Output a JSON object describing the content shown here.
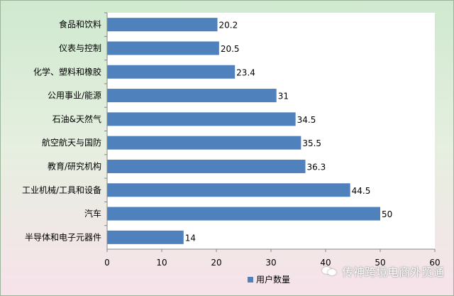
{
  "chart_data": {
    "type": "bar",
    "orientation": "horizontal",
    "categories": [
      "食品和饮料",
      "仪表与控制",
      "化学、塑料和橡胶",
      "公用事业/能源",
      "石油&天然气",
      "航空航天与国防",
      "教育/研究机构",
      "工业机械/工具和设备",
      "汽车",
      "半导体和电子元器件"
    ],
    "series": [
      {
        "name": "用户数量",
        "values": [
          20.2,
          20.5,
          23.4,
          31,
          34.5,
          35.5,
          36.3,
          44.5,
          50,
          14
        ],
        "labels": [
          "20.2",
          "20.5",
          "23.4",
          "31",
          "34.5",
          "35.5",
          "36.3",
          "44.5",
          "50",
          "14"
        ]
      }
    ],
    "xlim": [
      0,
      60
    ],
    "xticks": [
      "0",
      "10",
      "20",
      "30",
      "40",
      "50",
      "60"
    ],
    "grid": false,
    "legend_position": "bottom",
    "bar_color": "#4f81bd"
  },
  "watermark": "传神跨境电商外贸通"
}
